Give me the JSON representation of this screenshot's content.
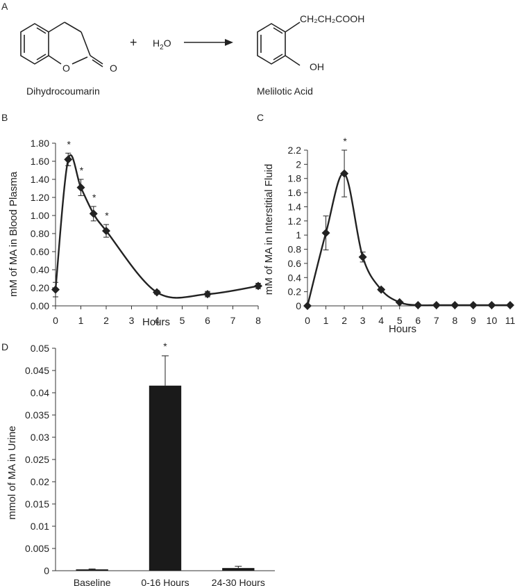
{
  "panel_a": {
    "letter": "A",
    "plus": "+",
    "water": {
      "main": "H",
      "sub": "2",
      "tail": "O"
    },
    "reactant_O": "O",
    "reactant_carbonyl_O": "O",
    "product_chain": "CH₂CH₂COOH",
    "product_OH": "OH",
    "reactant_name": "Dihydrocoumarin",
    "product_name": "Melilotic Acid"
  },
  "chart_data": [
    {
      "panel": "B",
      "type": "line",
      "smooth": true,
      "marker": "diamond",
      "xlabel": "Hours",
      "ylabel": "mM of MA in Blood Plasma",
      "xlim": [
        0,
        8
      ],
      "ylim": [
        0,
        1.8
      ],
      "xticks": [
        "0",
        "1",
        "2",
        "3",
        "4",
        "5",
        "6",
        "7",
        "8"
      ],
      "yticks": [
        "0.00",
        "0.20",
        "0.40",
        "0.60",
        "0.80",
        "1.00",
        "1.20",
        "1.40",
        "1.60",
        "1.80"
      ],
      "x": [
        0,
        0.5,
        1,
        1.5,
        2,
        4,
        6,
        8
      ],
      "y": [
        0.18,
        1.62,
        1.31,
        1.02,
        0.83,
        0.15,
        0.13,
        0.22
      ],
      "err": [
        0.08,
        0.07,
        0.09,
        0.08,
        0.07,
        0.02,
        0.03,
        0.03
      ],
      "significant": [
        false,
        true,
        true,
        true,
        true,
        false,
        false,
        false
      ],
      "sig_label": "*"
    },
    {
      "panel": "C",
      "type": "line",
      "smooth": true,
      "marker": "diamond",
      "xlabel": "Hours",
      "ylabel": "mM of MA in Interstitial Fluid",
      "xlim": [
        0,
        11
      ],
      "ylim": [
        0,
        2.2
      ],
      "xticks": [
        "0",
        "1",
        "2",
        "3",
        "4",
        "5",
        "6",
        "7",
        "8",
        "9",
        "10",
        "11"
      ],
      "yticks": [
        "0",
        "0.2",
        "0.4",
        "0.6",
        "0.8",
        "1",
        "1.2",
        "1.4",
        "1.6",
        "1.8",
        "2",
        "2.2"
      ],
      "x": [
        0,
        1,
        2,
        3,
        4,
        5,
        6,
        7,
        8,
        9,
        10,
        11
      ],
      "y": [
        0,
        1.03,
        1.87,
        0.69,
        0.23,
        0.05,
        0.01,
        0.01,
        0.01,
        0.01,
        0.01,
        0.01
      ],
      "err": [
        0,
        0.24,
        0.33,
        0.07,
        0.02,
        0.01,
        0,
        0,
        0,
        0,
        0,
        0
      ],
      "significant": [
        false,
        false,
        true,
        false,
        false,
        false,
        false,
        false,
        false,
        false,
        false,
        false
      ],
      "sig_label": "*"
    },
    {
      "panel": "D",
      "type": "bar",
      "xlabel": "",
      "ylabel": "mmol of MA in Urine",
      "ylim": [
        0,
        0.05
      ],
      "categories": [
        "Baseline",
        "0-16 Hours",
        "24-30 Hours"
      ],
      "yticks": [
        "0",
        "0.005",
        "0.01",
        "0.015",
        "0.02",
        "0.025",
        "0.03",
        "0.035",
        "0.04",
        "0.045",
        "0.05"
      ],
      "values": [
        0.0003,
        0.0416,
        0.0006
      ],
      "err": [
        0.0001,
        0.0067,
        0.0004
      ],
      "significant": [
        false,
        true,
        false
      ],
      "sig_label": "*",
      "bar_color": "#1a1a1a"
    }
  ],
  "colors": {
    "ink": "#222222",
    "axis": "#333333",
    "bar": "#1a1a1a"
  }
}
